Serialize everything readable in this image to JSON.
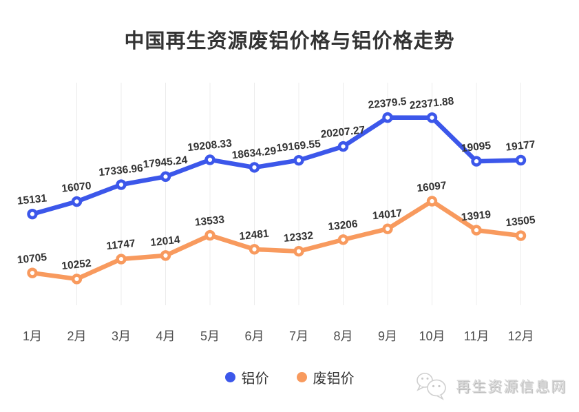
{
  "page": {
    "background": "#ffffff"
  },
  "chart_data": {
    "type": "line",
    "title": "中国再生资源废铝价格与铝价格走势",
    "categories": [
      "1月",
      "2月",
      "3月",
      "4月",
      "5月",
      "6月",
      "7月",
      "8月",
      "9月",
      "10月",
      "11月",
      "12月"
    ],
    "series": [
      {
        "name": "铝价",
        "color": "#3c57ea",
        "values": [
          15131,
          16070,
          17336.96,
          17945.24,
          19208.33,
          18634.29,
          19169.55,
          20207.27,
          22379.5,
          22371.88,
          19095,
          19177
        ]
      },
      {
        "name": "废铝价",
        "color": "#f89a5e",
        "values": [
          10705,
          10252,
          11747,
          12014,
          13533,
          12481,
          12332,
          13206,
          14017,
          16097,
          13919,
          13505
        ]
      }
    ],
    "xlabel": "",
    "ylabel": "",
    "ylim": [
      8281,
      25000
    ],
    "grid": "vertical-gridlines-only",
    "gridline_color": "#ececec",
    "point_label_color": "#333333",
    "axis_label_color": "#4d4d4d",
    "show_point_labels": true,
    "legend_position": "bottom-center"
  },
  "watermark": {
    "label": "再生资源信息网",
    "icon": "wechat-icon",
    "color": "#d9d9d9"
  }
}
